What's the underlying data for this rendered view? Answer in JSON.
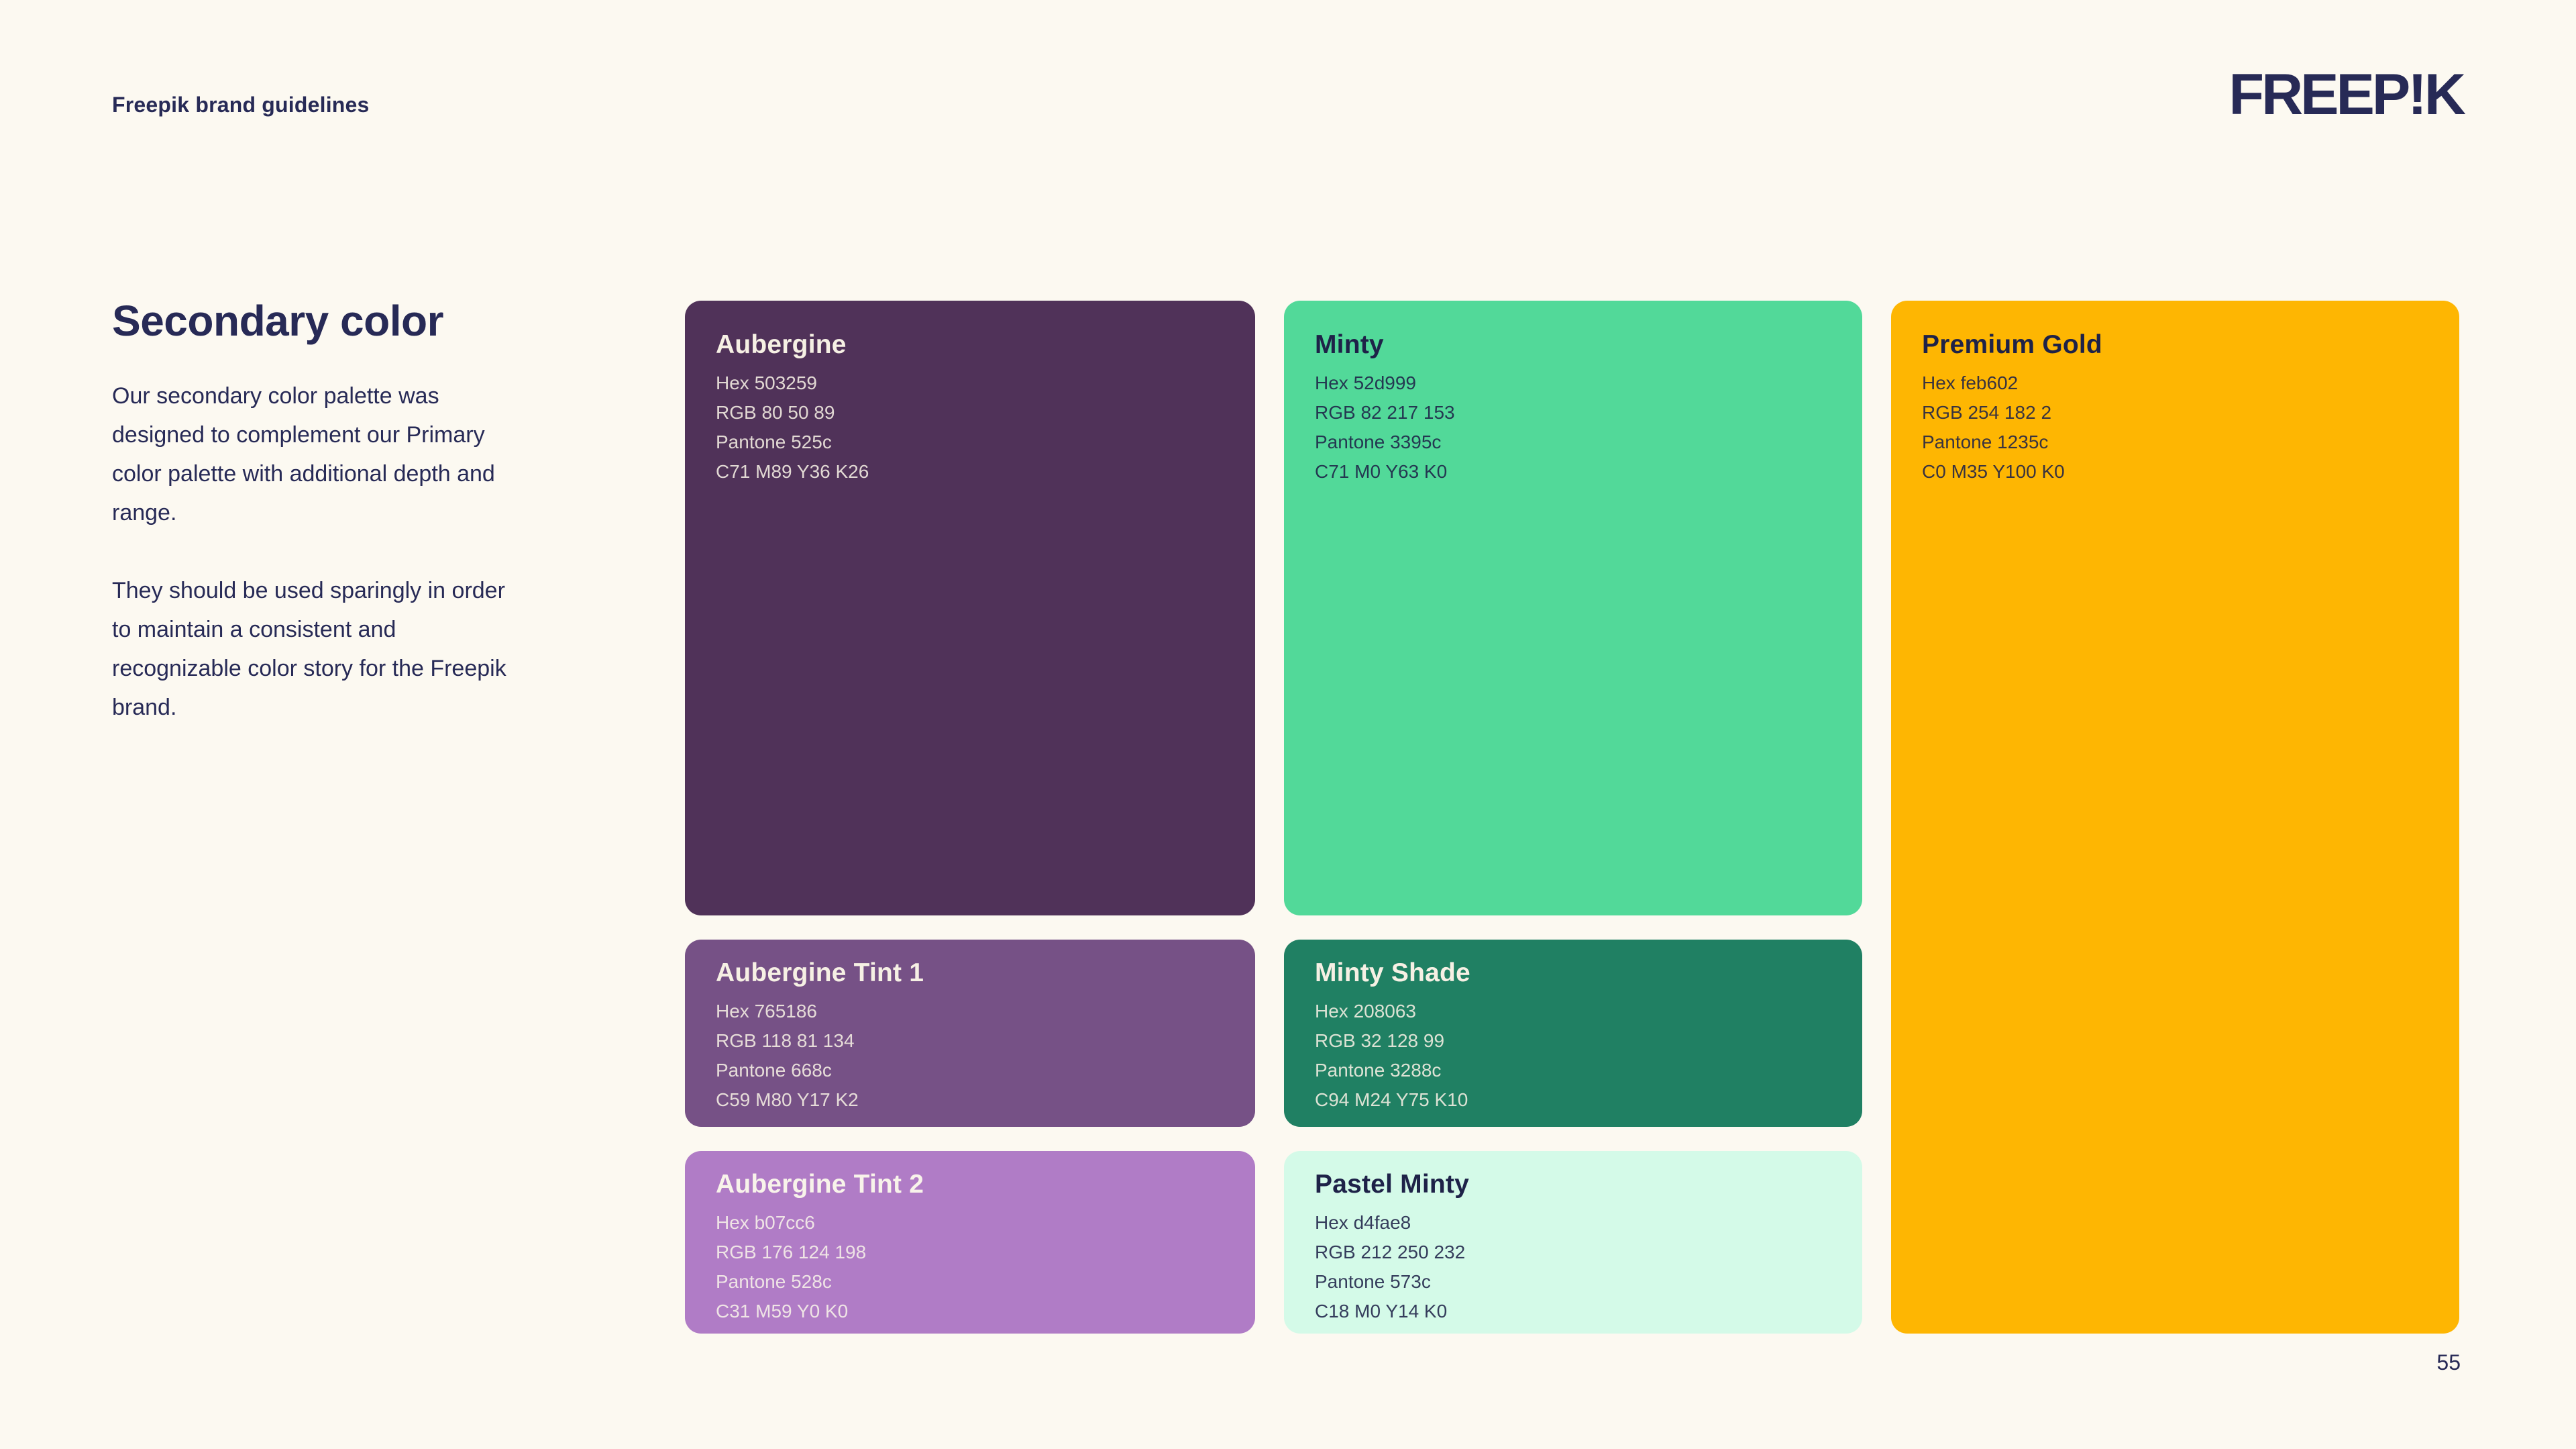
{
  "page": {
    "background": "#FCF9F1",
    "navy": "#272A56",
    "ivory": "#F6F0E4",
    "page_number": "55"
  },
  "header": {
    "label": "Freepik brand guidelines",
    "logo_text": "FREEP!K"
  },
  "intro": {
    "title": "Secondary color",
    "paragraph1": "Our secondary color palette was designed to complement our Primary color palette with additional depth and range.",
    "paragraph2": "They should be used sparingly in order to maintain a consistent and recognizable color story for the Freepik brand."
  },
  "cards": [
    {
      "name": "Aubergine",
      "hex": "Hex 503259",
      "rgb": "RGB 80 50 89",
      "pantone": "Pantone 525c",
      "cmyk": "C71 M89 Y36 K26",
      "bg": "#503259",
      "fg": "#F6F0E4"
    },
    {
      "name": "Minty",
      "hex": "Hex 52d999",
      "rgb": "RGB 82 217 153",
      "pantone": "Pantone 3395c",
      "cmyk": "C71 M0 Y63 K0",
      "bg": "#52d999",
      "fg": "#1E2248"
    },
    {
      "name": "Premium Gold",
      "hex": "Hex feb602",
      "rgb": "RGB 254 182 2",
      "pantone": "Pantone 1235c",
      "cmyk": "C0 M35 Y100 K0",
      "bg": "#feb602",
      "fg": "#1E2248"
    },
    {
      "name": "Aubergine Tint 1",
      "hex": "Hex 765186",
      "rgb": "RGB 118 81 134",
      "pantone": "Pantone 668c",
      "cmyk": "C59 M80 Y17 K2",
      "bg": "#765186",
      "fg": "#F6F0E4"
    },
    {
      "name": "Minty Shade",
      "hex": "Hex 208063",
      "rgb": "RGB 32 128 99",
      "pantone": "Pantone 3288c",
      "cmyk": "C94 M24 Y75 K10",
      "bg": "#208063",
      "fg": "#F6F0E4"
    },
    {
      "name": "Aubergine Tint 2",
      "hex": "Hex b07cc6",
      "rgb": "RGB 176 124 198",
      "pantone": "Pantone 528c",
      "cmyk": "C31 M59 Y0 K0",
      "bg": "#b07cc6",
      "fg": "#F8F3EA"
    },
    {
      "name": "Pastel Minty",
      "hex": "Hex d4fae8",
      "rgb": "RGB 212 250 232",
      "pantone": "Pantone 573c",
      "cmyk": "C18 M0 Y14 K0",
      "bg": "#d4fae8",
      "fg": "#1E2248"
    }
  ]
}
